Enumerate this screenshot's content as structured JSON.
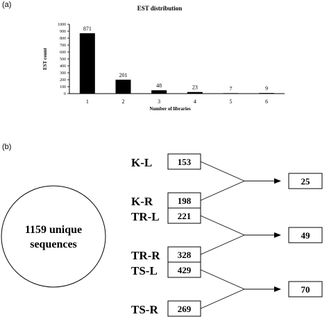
{
  "panel_a_label": "(a)",
  "panel_b_label": "(b)",
  "chart_data": {
    "type": "bar",
    "title": "EST distribution",
    "xlabel": "Number of libraries",
    "ylabel": "EST count",
    "categories": [
      "1",
      "2",
      "3",
      "4",
      "5",
      "6"
    ],
    "values": [
      871,
      201,
      48,
      23,
      7,
      9
    ],
    "ylim": [
      0,
      1000
    ],
    "yticks": [
      0,
      100,
      200,
      300,
      400,
      500,
      600,
      700,
      800,
      900,
      1000
    ],
    "grid": false,
    "bar_color": "#000000"
  },
  "diagram": {
    "circle_lines": [
      "1159 unique",
      "sequences"
    ],
    "groups": [
      {
        "left_label": "K-L",
        "left_value": "153",
        "right_label": "K-R",
        "right_value": "198",
        "result": "25"
      },
      {
        "left_label": "TR-L",
        "left_value": "221",
        "right_label": "TR-R",
        "right_value": "328",
        "result": "49"
      },
      {
        "left_label": "TS-L",
        "left_value": "429",
        "right_label": "TS-R",
        "right_value": "269",
        "result": "70"
      }
    ]
  }
}
